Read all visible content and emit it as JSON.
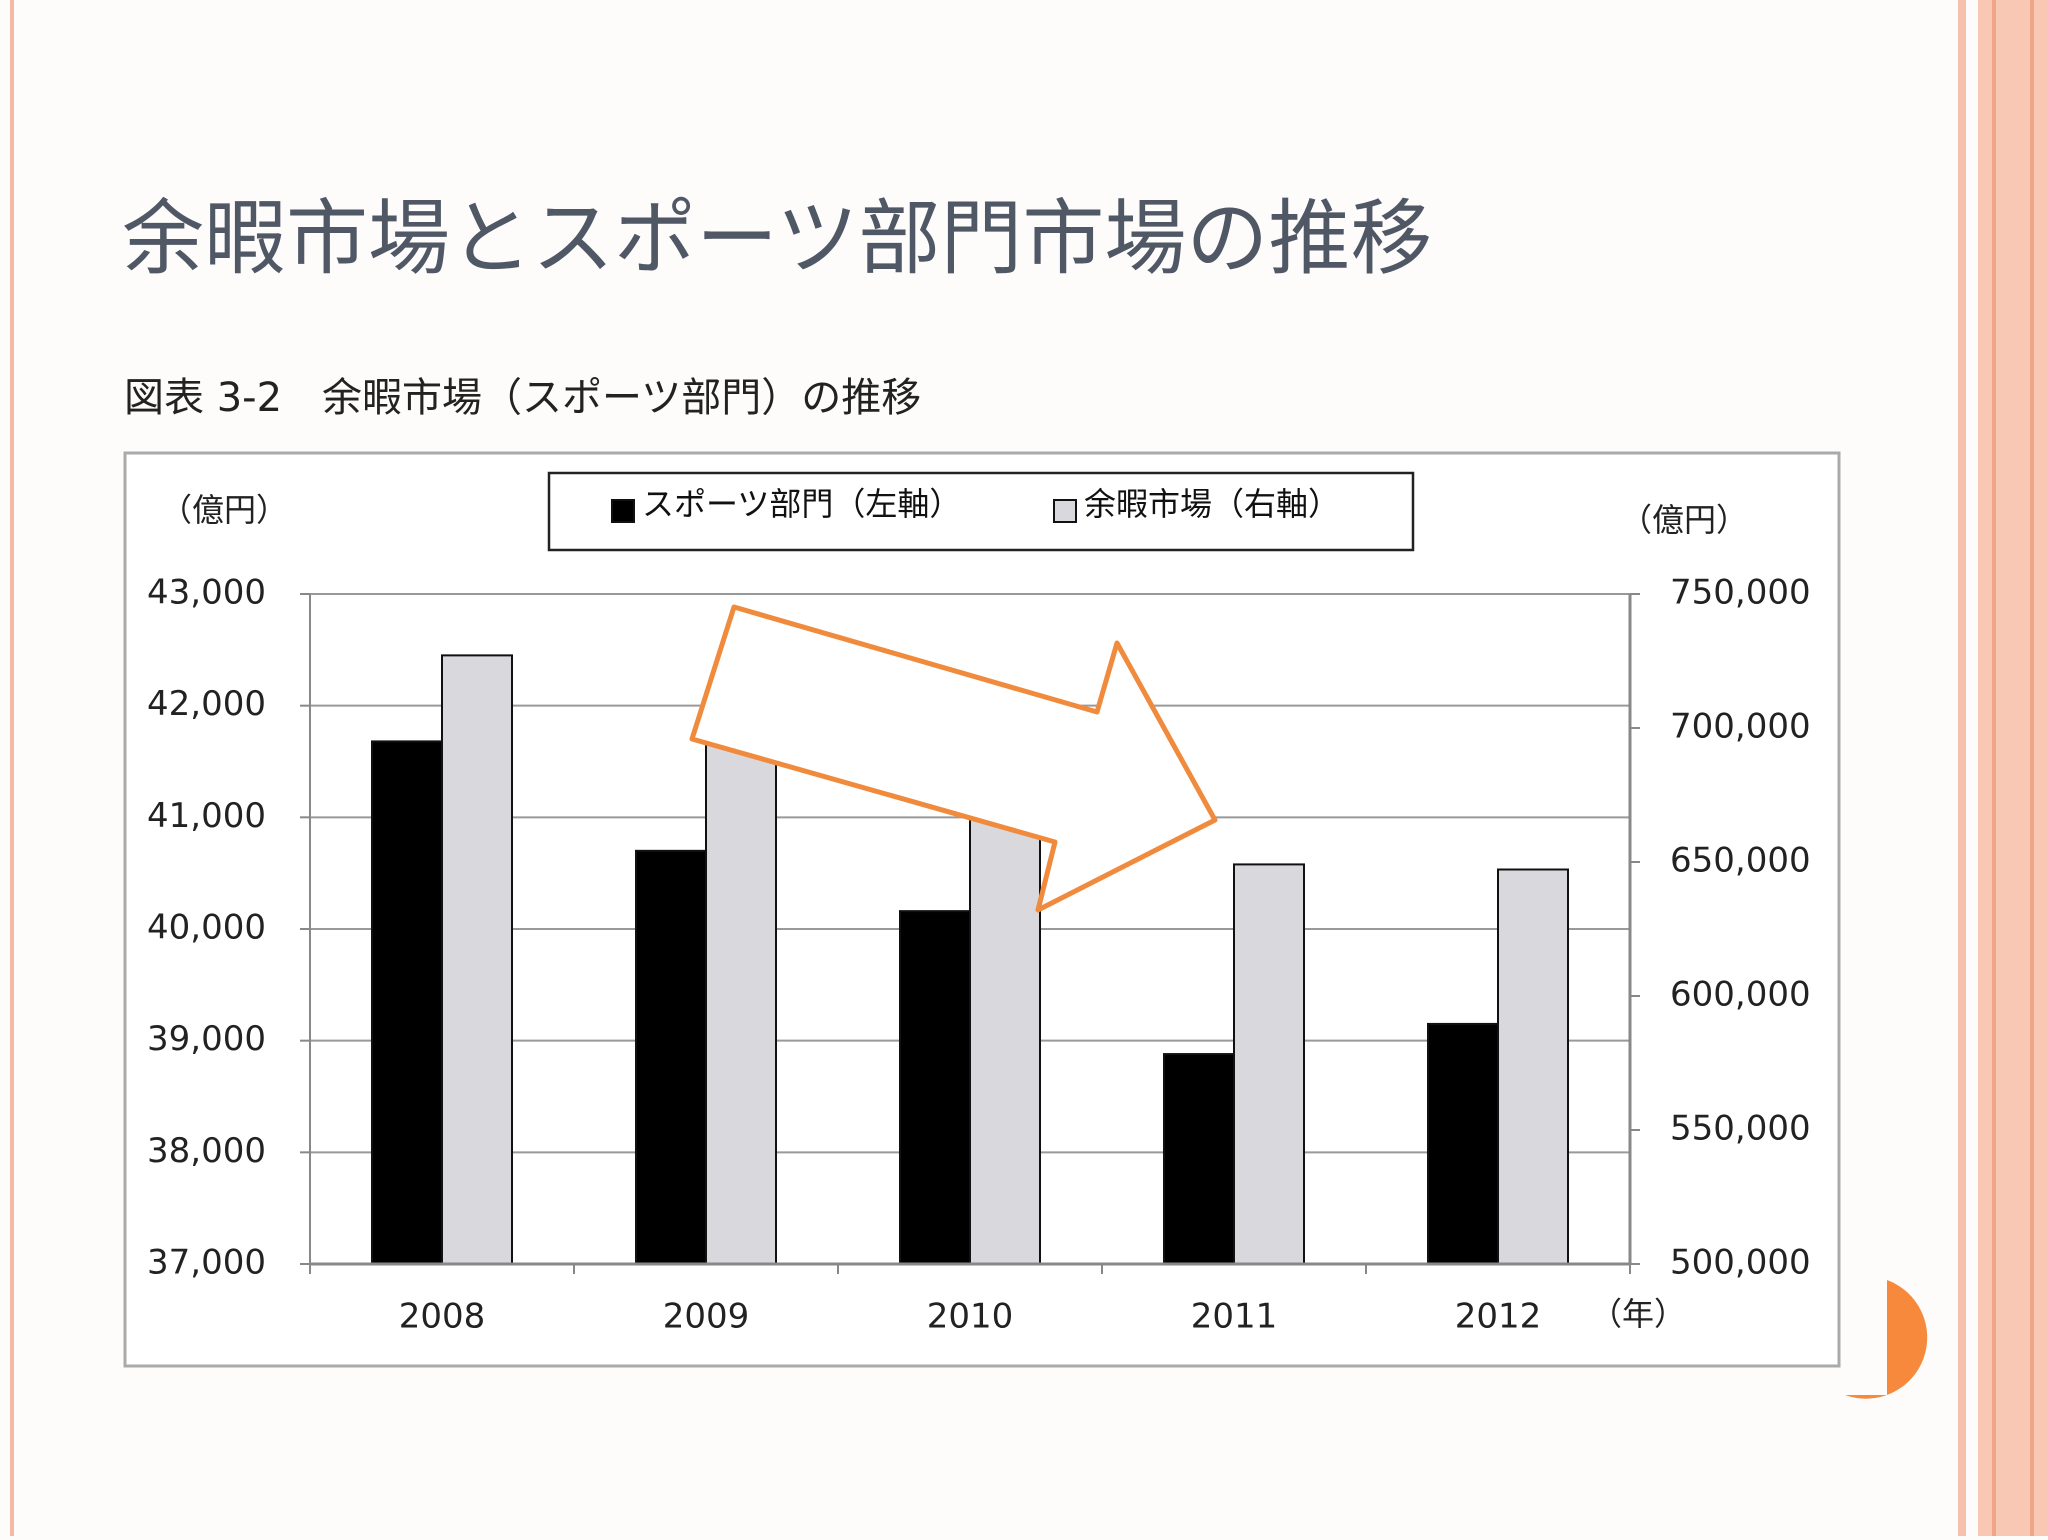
{
  "slide_title": "余暇市場とスポーツ部門市場の推移",
  "chart_data": {
    "type": "bar",
    "title": "図表 3-2　余暇市場（スポーツ部門）の推移",
    "y_label": "（億円）",
    "y2_label": "（億円）",
    "x_label": "（年）",
    "categories": [
      "2008",
      "2009",
      "2010",
      "2011",
      "2012"
    ],
    "series": [
      {
        "name": "スポーツ部門（左軸）",
        "color": "#000000",
        "values": [
          41680,
          40700,
          40160,
          38880,
          39150
        ]
      },
      {
        "name": "余暇市場（右軸）",
        "color": "#d9d8dc",
        "axis": "y2",
        "values": [
          727100,
          700000,
          680000,
          649100,
          647200
        ]
      }
    ],
    "ylim": [
      37000,
      43000
    ],
    "yticks": [
      {
        "value": 37000,
        "label": "37,000"
      },
      {
        "value": 38000,
        "label": "38,000"
      },
      {
        "value": 39000,
        "label": "39,000"
      },
      {
        "value": 40000,
        "label": "40,000"
      },
      {
        "value": 41000,
        "label": "41,000"
      },
      {
        "value": 42000,
        "label": "42,000"
      },
      {
        "value": 43000,
        "label": "43,000"
      }
    ],
    "y2lim": [
      500000,
      750000
    ],
    "y2ticks": [
      {
        "value": 500000,
        "label": "500,000"
      },
      {
        "value": 550000,
        "label": "550,000"
      },
      {
        "value": 600000,
        "label": "600,000"
      },
      {
        "value": 650000,
        "label": "650,000"
      },
      {
        "value": 700000,
        "label": "700,000"
      },
      {
        "value": 750000,
        "label": "750,000"
      }
    ],
    "grid": true
  }
}
